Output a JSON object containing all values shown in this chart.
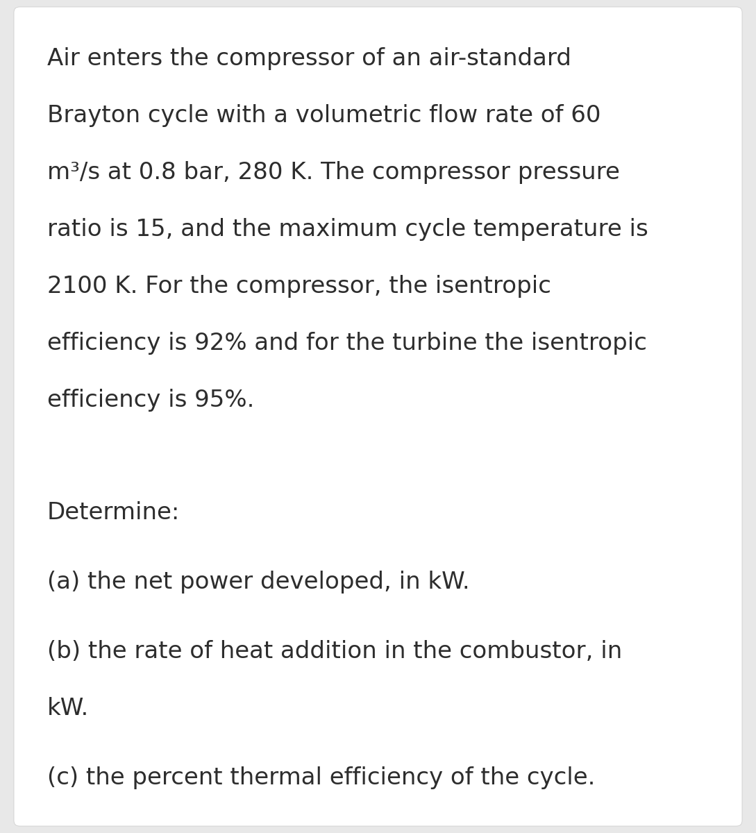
{
  "background_color": "#e8e8e8",
  "card_color": "#ffffff",
  "text_color": "#2d2d2d",
  "font_family": "DejaVu Sans",
  "lines": [
    "Air enters the compressor of an air-standard",
    "Brayton cycle with a volumetric flow rate of 60",
    "m³/s at 0.8 bar, 280 K. The compressor pressure",
    "ratio is 15, and the maximum cycle temperature is",
    "2100 K. For the compressor, the isentropic",
    "efficiency is 92% and for the turbine the isentropic",
    "efficiency is 95%."
  ],
  "determine": "Determine:",
  "item_a": "(a) the net power developed, in kW.",
  "item_b1": "(b) the rate of heat addition in the combustor, in",
  "item_b2": "kW.",
  "item_c": "(c) the percent thermal efficiency of the cycle.",
  "font_size": 24.5
}
